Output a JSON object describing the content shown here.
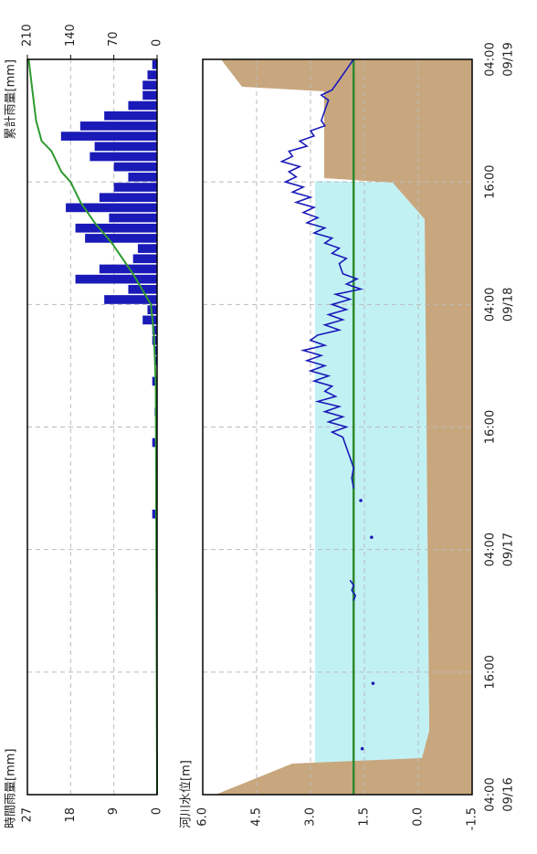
{
  "chart_data": [
    {
      "type": "bar",
      "title": "時間雨量[mm]",
      "y2_title": "累計雨量[mm]",
      "xlim": [
        0,
        72
      ],
      "ylim": [
        0,
        27
      ],
      "yticks": [
        0,
        9,
        18,
        27
      ],
      "y2lim": [
        0,
        210
      ],
      "y2ticks": [
        0,
        70,
        140,
        210
      ],
      "grid": true,
      "series": [
        {
          "color": "#1a1ab8",
          "x": [
            0,
            1,
            2,
            3,
            4,
            5,
            6,
            7,
            8,
            9,
            10,
            11,
            12,
            13,
            14,
            15,
            16,
            17,
            18,
            19,
            20,
            21,
            22,
            23,
            24,
            25,
            26,
            27,
            28,
            29,
            30,
            31,
            32,
            33,
            34,
            35,
            36,
            37,
            38,
            39,
            40,
            41,
            42,
            43,
            44,
            45,
            46,
            47,
            48,
            49,
            50,
            51,
            52,
            53,
            54,
            55,
            56,
            57,
            58,
            59,
            60,
            61,
            62,
            63,
            64,
            65,
            66,
            67,
            68,
            69,
            70,
            71
          ],
          "values": [
            0,
            0,
            0,
            0,
            0,
            0,
            0,
            0,
            0,
            0,
            0,
            0,
            0,
            0,
            0,
            0,
            0,
            0,
            0,
            0,
            0,
            0,
            0,
            0,
            0,
            0,
            0,
            1,
            0,
            0,
            0,
            0,
            0,
            0,
            1,
            0,
            0,
            0.5,
            0,
            0,
            1,
            0,
            0.5,
            0.5,
            1,
            1,
            3,
            2,
            11,
            6,
            17,
            12,
            5,
            4,
            15,
            17,
            10,
            19,
            12,
            9,
            6,
            9,
            14,
            13,
            20,
            16,
            11,
            6,
            3,
            3,
            2,
            1
          ]
        },
        {
          "color": "#2e9a2e",
          "type": "line",
          "axis": "y2",
          "x": [
            0,
            40,
            45,
            48,
            51,
            54,
            56,
            58,
            60,
            61,
            63,
            64,
            66,
            69,
            72
          ],
          "values": [
            0,
            2,
            5,
            10,
            39,
            73,
            101,
            124,
            140,
            155,
            171,
            187,
            196,
            202,
            208
          ]
        }
      ]
    },
    {
      "type": "line",
      "title": "河川水位[m]",
      "xlim": [
        0,
        72
      ],
      "xticks": [
        {
          "value": 0,
          "label": "04:00",
          "date": "09/16"
        },
        {
          "value": 12,
          "label": "16:00"
        },
        {
          "value": 24,
          "label": "04:00",
          "date": "09/17"
        },
        {
          "value": 36,
          "label": "16:00"
        },
        {
          "value": 48,
          "label": "04:00",
          "date": "09/18"
        },
        {
          "value": 60,
          "label": "16:00"
        },
        {
          "value": 72,
          "label": "04:00",
          "date": "09/19"
        }
      ],
      "ylim": [
        -1.5,
        6.0
      ],
      "yticks": [
        -1.5,
        {
          "value": 0,
          "label": "0.0"
        },
        1.5,
        {
          "value": 3,
          "label": "3.0"
        },
        4.5,
        {
          "value": 6,
          "label": "6.0"
        }
      ],
      "grid": true,
      "hline": {
        "value": 1.8,
        "color": "#2e8a2e"
      },
      "series": [
        {
          "color": "#1a1ab8",
          "x": [
            19,
            19.5,
            20,
            20.5,
            21
          ],
          "values": [
            1.8,
            1.75,
            1.85,
            1.8,
            1.9
          ]
        },
        {
          "color": "#1a1ab8",
          "x": [
            30,
            31,
            32,
            33,
            34,
            35,
            35.5,
            36,
            36.5,
            37,
            37.5,
            38,
            38.5,
            39,
            39.5,
            40,
            40.5,
            41,
            41.5,
            42,
            42.5,
            43,
            43.5,
            44,
            44.5,
            45,
            45.5,
            46,
            46.5,
            47,
            47.5,
            48,
            48.5,
            49,
            49.5,
            50,
            50.5,
            51,
            52,
            52.5,
            53,
            53.5,
            54,
            54.5,
            55,
            55.5,
            56,
            56.5,
            57,
            57.5,
            58,
            58.5,
            59,
            59.5,
            60,
            60.5,
            61,
            61.5,
            62,
            62.5,
            63,
            63.5,
            64,
            64.5,
            65,
            65.5,
            66,
            67,
            68,
            68.5,
            69,
            70,
            71,
            72
          ],
          "values": [
            1.8,
            1.85,
            1.8,
            1.9,
            2.0,
            2.1,
            2.4,
            2.0,
            2.5,
            2.1,
            2.6,
            2.2,
            2.8,
            2.3,
            2.6,
            2.4,
            2.9,
            2.5,
            3.0,
            2.6,
            3.1,
            2.7,
            3.2,
            2.6,
            3.0,
            2.8,
            2.2,
            2.6,
            2.1,
            2.5,
            2.0,
            2.4,
            1.9,
            2.3,
            1.6,
            2.0,
            1.7,
            2.1,
            2.2,
            2.0,
            2.4,
            2.2,
            2.6,
            2.4,
            2.9,
            2.6,
            3.1,
            2.8,
            3.2,
            2.9,
            3.4,
            3.0,
            3.5,
            3.2,
            3.7,
            3.4,
            3.6,
            3.3,
            3.8,
            3.5,
            3.6,
            3.1,
            3.3,
            2.9,
            3.0,
            2.6,
            2.7,
            2.6,
            2.5,
            2.7,
            2.4,
            2.2,
            2.0,
            1.8
          ]
        },
        {
          "color": "#1a1ab8",
          "type": "scatter",
          "x": [
            4.5,
            10.9,
            25.2,
            28.8
          ],
          "values": [
            1.56,
            1.26,
            1.3,
            1.6
          ]
        }
      ]
    }
  ]
}
